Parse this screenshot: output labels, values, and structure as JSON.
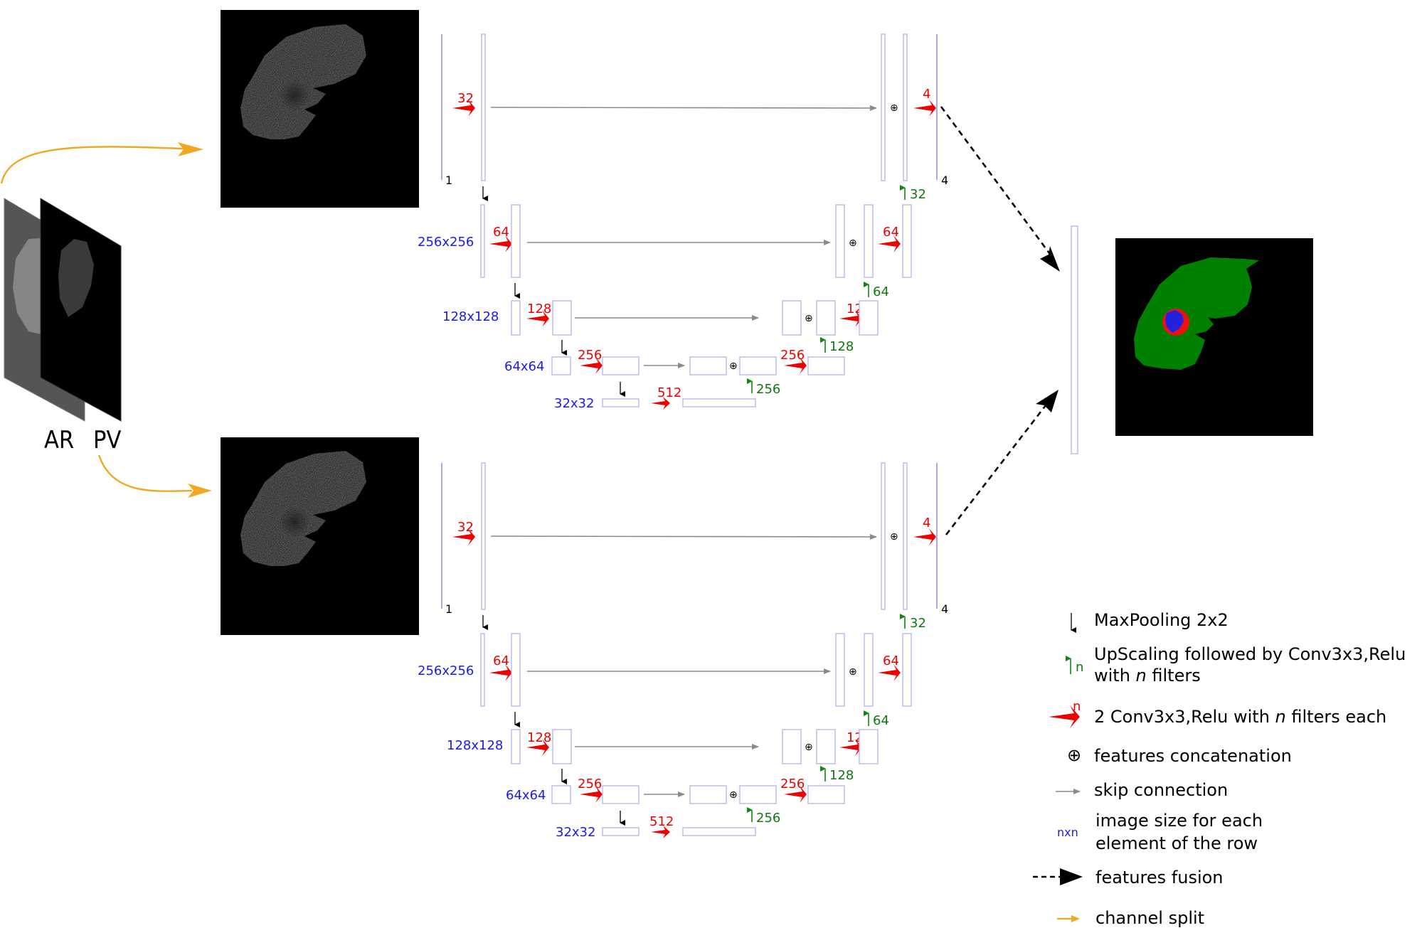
{
  "channels": {
    "ar_label": "AR",
    "pv_label": "PV"
  },
  "unet": {
    "input_index": "1",
    "output_index": "4",
    "enc_filters": [
      "32",
      "64",
      "128",
      "256"
    ],
    "bottleneck_filters": "512",
    "dec_filters": [
      "256",
      "128",
      "64",
      "4"
    ],
    "up_filters": [
      "256",
      "128",
      "64",
      "32"
    ],
    "sizes": [
      "256x256",
      "128x128",
      "64x64",
      "32x32"
    ],
    "concat_symbol": "⊕"
  },
  "legend": {
    "maxpool": "MaxPooling 2x2",
    "upscaling_line1": "UpScaling followed by Conv3x3,Relu",
    "upscaling_line2_pre": "with ",
    "upscaling_line2_n": "n",
    "upscaling_line2_post": " filters",
    "upscaling_icon_n": "n",
    "conv_pre": "2 Conv3x3,Relu with ",
    "conv_n": "n",
    "conv_post": " filters each",
    "conv_icon_n": "n",
    "concat_symbol": "⊕",
    "concat": "features concatenation",
    "skip": "skip connection",
    "size_icon": "nxn",
    "size_line1": "image size for each",
    "size_line2": " element of the row",
    "fusion": "features fusion",
    "split": "channel split"
  },
  "colors": {
    "conv_arrow": "#ee0000",
    "up_arrow": "#118811",
    "size_text": "#1a1aee",
    "box_outline": "#b8b8ee",
    "split_arrow": "#f0a820",
    "liver_segment": "#008000",
    "tumor": "#ee1111",
    "tumor_core": "#2222dd"
  }
}
